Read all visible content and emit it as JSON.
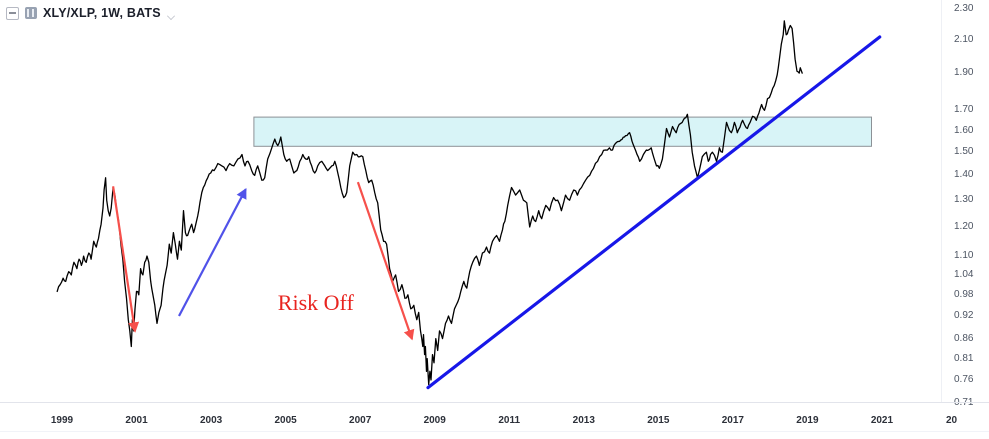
{
  "window": {
    "toolbar": {
      "title": "XLY/XLP, 1W, BATS"
    }
  },
  "chart_data": {
    "type": "line",
    "title": "XLY/XLP, 1W, BATS",
    "symbol": "XLY/XLP",
    "timeframe": "1W",
    "exchange": "BATS",
    "x_axis": {
      "tick_years": [
        1999,
        2001,
        2003,
        2005,
        2007,
        2009,
        2011,
        2013,
        2015,
        2017,
        2019,
        2021
      ],
      "edge_partial_label": "20"
    },
    "y_axis": {
      "side": "right",
      "scale": "log",
      "tick_values": [
        2.3,
        2.1,
        1.9,
        1.7,
        1.6,
        1.5,
        1.4,
        1.3,
        1.2,
        1.1,
        1.04,
        0.98,
        0.92,
        0.86,
        0.81,
        0.76,
        0.71
      ]
    },
    "series": [
      {
        "name": "XLY/XLP weekly close",
        "color": "#000000",
        "width": 1.3,
        "points": [
          [
            1998.87,
            0.99
          ],
          [
            1998.95,
            1.01
          ],
          [
            1999.03,
            1.03
          ],
          [
            1999.1,
            1.02
          ],
          [
            1999.18,
            1.05
          ],
          [
            1999.25,
            1.04
          ],
          [
            1999.32,
            1.08
          ],
          [
            1999.4,
            1.06
          ],
          [
            1999.46,
            1.09
          ],
          [
            1999.52,
            1.07
          ],
          [
            1999.58,
            1.1
          ],
          [
            1999.65,
            1.08
          ],
          [
            1999.72,
            1.11
          ],
          [
            1999.78,
            1.09
          ],
          [
            1999.85,
            1.15
          ],
          [
            1999.92,
            1.13
          ],
          [
            1999.98,
            1.16
          ],
          [
            2000.05,
            1.21
          ],
          [
            2000.1,
            1.27
          ],
          [
            2000.13,
            1.34
          ],
          [
            2000.17,
            1.39
          ],
          [
            2000.2,
            1.3
          ],
          [
            2000.24,
            1.26
          ],
          [
            2000.28,
            1.24
          ],
          [
            2000.32,
            1.27
          ],
          [
            2000.37,
            1.35
          ],
          [
            2000.42,
            1.32
          ],
          [
            2000.47,
            1.26
          ],
          [
            2000.52,
            1.22
          ],
          [
            2000.58,
            1.14
          ],
          [
            2000.63,
            1.09
          ],
          [
            2000.68,
            1.02
          ],
          [
            2000.73,
            0.97
          ],
          [
            2000.78,
            0.91
          ],
          [
            2000.82,
            0.88
          ],
          [
            2000.86,
            0.84
          ],
          [
            2000.89,
            0.91
          ],
          [
            2000.92,
            0.88
          ],
          [
            2000.96,
            0.94
          ],
          [
            2001.0,
            0.99
          ],
          [
            2001.06,
            0.98
          ],
          [
            2001.11,
            1.06
          ],
          [
            2001.17,
            1.04
          ],
          [
            2001.22,
            1.08
          ],
          [
            2001.28,
            1.1
          ],
          [
            2001.33,
            1.08
          ],
          [
            2001.38,
            1.02
          ],
          [
            2001.44,
            0.98
          ],
          [
            2001.49,
            0.95
          ],
          [
            2001.55,
            0.9
          ],
          [
            2001.6,
            0.93
          ],
          [
            2001.66,
            0.95
          ],
          [
            2001.71,
            1.0
          ],
          [
            2001.77,
            1.04
          ],
          [
            2001.82,
            1.07
          ],
          [
            2001.88,
            1.14
          ],
          [
            2001.93,
            1.11
          ],
          [
            2001.99,
            1.18
          ],
          [
            2002.04,
            1.14
          ],
          [
            2002.1,
            1.09
          ],
          [
            2002.15,
            1.15
          ],
          [
            2002.2,
            1.12
          ],
          [
            2002.26,
            1.26
          ],
          [
            2002.31,
            1.18
          ],
          [
            2002.37,
            1.17
          ],
          [
            2002.42,
            1.19
          ],
          [
            2002.48,
            1.21
          ],
          [
            2002.53,
            1.18
          ],
          [
            2002.59,
            1.21
          ],
          [
            2002.64,
            1.24
          ],
          [
            2002.7,
            1.29
          ],
          [
            2002.75,
            1.33
          ],
          [
            2002.83,
            1.36
          ],
          [
            2002.91,
            1.39
          ],
          [
            2002.99,
            1.41
          ],
          [
            2003.08,
            1.42
          ],
          [
            2003.18,
            1.45
          ],
          [
            2003.29,
            1.44
          ],
          [
            2003.4,
            1.42
          ],
          [
            2003.5,
            1.45
          ],
          [
            2003.61,
            1.44
          ],
          [
            2003.72,
            1.47
          ],
          [
            2003.83,
            1.49
          ],
          [
            2003.91,
            1.44
          ],
          [
            2003.99,
            1.46
          ],
          [
            2004.09,
            1.42
          ],
          [
            2004.17,
            1.4
          ],
          [
            2004.25,
            1.44
          ],
          [
            2004.36,
            1.38
          ],
          [
            2004.44,
            1.39
          ],
          [
            2004.52,
            1.47
          ],
          [
            2004.63,
            1.52
          ],
          [
            2004.71,
            1.56
          ],
          [
            2004.79,
            1.53
          ],
          [
            2004.87,
            1.57
          ],
          [
            2004.95,
            1.49
          ],
          [
            2005.03,
            1.46
          ],
          [
            2005.11,
            1.47
          ],
          [
            2005.22,
            1.41
          ],
          [
            2005.3,
            1.42
          ],
          [
            2005.38,
            1.46
          ],
          [
            2005.46,
            1.49
          ],
          [
            2005.54,
            1.47
          ],
          [
            2005.62,
            1.48
          ],
          [
            2005.7,
            1.44
          ],
          [
            2005.78,
            1.41
          ],
          [
            2005.86,
            1.44
          ],
          [
            2005.97,
            1.46
          ],
          [
            2006.05,
            1.44
          ],
          [
            2006.13,
            1.42
          ],
          [
            2006.24,
            1.44
          ],
          [
            2006.32,
            1.46
          ],
          [
            2006.4,
            1.41
          ],
          [
            2006.48,
            1.35
          ],
          [
            2006.56,
            1.31
          ],
          [
            2006.64,
            1.33
          ],
          [
            2006.72,
            1.44
          ],
          [
            2006.8,
            1.5
          ],
          [
            2006.91,
            1.49
          ],
          [
            2006.99,
            1.48
          ],
          [
            2007.07,
            1.48
          ],
          [
            2007.15,
            1.42
          ],
          [
            2007.23,
            1.37
          ],
          [
            2007.31,
            1.38
          ],
          [
            2007.39,
            1.33
          ],
          [
            2007.47,
            1.29
          ],
          [
            2007.55,
            1.19
          ],
          [
            2007.63,
            1.15
          ],
          [
            2007.71,
            1.14
          ],
          [
            2007.79,
            1.06
          ],
          [
            2007.87,
            1.02
          ],
          [
            2007.95,
            1.04
          ],
          [
            2008.03,
            0.99
          ],
          [
            2008.12,
            1.01
          ],
          [
            2008.2,
            0.97
          ],
          [
            2008.28,
            0.98
          ],
          [
            2008.36,
            0.94
          ],
          [
            2008.44,
            0.95
          ],
          [
            2008.52,
            0.91
          ],
          [
            2008.57,
            0.93
          ],
          [
            2008.62,
            0.88
          ],
          [
            2008.68,
            0.84
          ],
          [
            2008.7,
            0.87
          ],
          [
            2008.73,
            0.82
          ],
          [
            2008.75,
            0.84
          ],
          [
            2008.78,
            0.78
          ],
          [
            2008.8,
            0.81
          ],
          [
            2008.84,
            0.75
          ],
          [
            2008.87,
            0.78
          ],
          [
            2008.9,
            0.76
          ],
          [
            2008.94,
            0.82
          ],
          [
            2008.98,
            0.8
          ],
          [
            2009.03,
            0.86
          ],
          [
            2009.08,
            0.83
          ],
          [
            2009.13,
            0.88
          ],
          [
            2009.21,
            0.86
          ],
          [
            2009.29,
            0.9
          ],
          [
            2009.37,
            0.92
          ],
          [
            2009.45,
            0.9
          ],
          [
            2009.53,
            0.94
          ],
          [
            2009.62,
            0.96
          ],
          [
            2009.7,
            0.99
          ],
          [
            2009.78,
            1.02
          ],
          [
            2009.86,
            1.0
          ],
          [
            2009.94,
            1.05
          ],
          [
            2010.02,
            1.08
          ],
          [
            2010.12,
            1.1
          ],
          [
            2010.2,
            1.07
          ],
          [
            2010.28,
            1.11
          ],
          [
            2010.39,
            1.13
          ],
          [
            2010.47,
            1.11
          ],
          [
            2010.55,
            1.15
          ],
          [
            2010.66,
            1.17
          ],
          [
            2010.74,
            1.15
          ],
          [
            2010.82,
            1.19
          ],
          [
            2010.88,
            1.22
          ],
          [
            2010.96,
            1.28
          ],
          [
            2011.06,
            1.35
          ],
          [
            2011.17,
            1.32
          ],
          [
            2011.28,
            1.34
          ],
          [
            2011.38,
            1.3
          ],
          [
            2011.47,
            1.29
          ],
          [
            2011.55,
            1.2
          ],
          [
            2011.63,
            1.24
          ],
          [
            2011.71,
            1.22
          ],
          [
            2011.79,
            1.26
          ],
          [
            2011.87,
            1.23
          ],
          [
            2011.98,
            1.28
          ],
          [
            2012.08,
            1.26
          ],
          [
            2012.19,
            1.31
          ],
          [
            2012.3,
            1.3
          ],
          [
            2012.4,
            1.26
          ],
          [
            2012.51,
            1.32
          ],
          [
            2012.62,
            1.3
          ],
          [
            2012.73,
            1.34
          ],
          [
            2012.83,
            1.32
          ],
          [
            2012.94,
            1.35
          ],
          [
            2013.05,
            1.38
          ],
          [
            2013.16,
            1.4
          ],
          [
            2013.26,
            1.43
          ],
          [
            2013.37,
            1.46
          ],
          [
            2013.48,
            1.49
          ],
          [
            2013.58,
            1.51
          ],
          [
            2013.69,
            1.52
          ],
          [
            2013.77,
            1.51
          ],
          [
            2013.85,
            1.54
          ],
          [
            2013.96,
            1.55
          ],
          [
            2014.09,
            1.57
          ],
          [
            2014.23,
            1.59
          ],
          [
            2014.36,
            1.52
          ],
          [
            2014.5,
            1.46
          ],
          [
            2014.6,
            1.49
          ],
          [
            2014.68,
            1.51
          ],
          [
            2014.81,
            1.52
          ],
          [
            2014.95,
            1.44
          ],
          [
            2015.03,
            1.43
          ],
          [
            2015.11,
            1.47
          ],
          [
            2015.22,
            1.61
          ],
          [
            2015.3,
            1.57
          ],
          [
            2015.38,
            1.62
          ],
          [
            2015.48,
            1.59
          ],
          [
            2015.56,
            1.63
          ],
          [
            2015.64,
            1.64
          ],
          [
            2015.7,
            1.66
          ],
          [
            2015.78,
            1.68
          ],
          [
            2015.86,
            1.58
          ],
          [
            2015.91,
            1.5
          ],
          [
            2015.97,
            1.44
          ],
          [
            2016.05,
            1.39
          ],
          [
            2016.1,
            1.42
          ],
          [
            2016.18,
            1.48
          ],
          [
            2016.29,
            1.5
          ],
          [
            2016.34,
            1.46
          ],
          [
            2016.4,
            1.49
          ],
          [
            2016.45,
            1.5
          ],
          [
            2016.56,
            1.46
          ],
          [
            2016.64,
            1.52
          ],
          [
            2016.72,
            1.5
          ],
          [
            2016.83,
            1.64
          ],
          [
            2016.91,
            1.6
          ],
          [
            2016.96,
            1.59
          ],
          [
            2017.04,
            1.64
          ],
          [
            2017.12,
            1.59
          ],
          [
            2017.26,
            1.65
          ],
          [
            2017.39,
            1.61
          ],
          [
            2017.53,
            1.67
          ],
          [
            2017.63,
            1.65
          ],
          [
            2017.77,
            1.73
          ],
          [
            2017.85,
            1.7
          ],
          [
            2017.93,
            1.76
          ],
          [
            2018.03,
            1.79
          ],
          [
            2018.11,
            1.83
          ],
          [
            2018.19,
            1.89
          ],
          [
            2018.25,
            1.98
          ],
          [
            2018.3,
            2.07
          ],
          [
            2018.35,
            2.13
          ],
          [
            2018.38,
            2.22
          ],
          [
            2018.43,
            2.13
          ],
          [
            2018.49,
            2.16
          ],
          [
            2018.54,
            2.19
          ],
          [
            2018.59,
            2.17
          ],
          [
            2018.63,
            2.08
          ],
          [
            2018.67,
            1.98
          ],
          [
            2018.72,
            1.91
          ],
          [
            2018.78,
            1.9
          ],
          [
            2018.81,
            1.93
          ],
          [
            2018.86,
            1.9
          ]
        ]
      }
    ],
    "trendline": {
      "name": "rising support trendline",
      "color": "#1717e8",
      "width": 3.2,
      "from_year": 2008.82,
      "from_price": 0.743,
      "to_year": 2020.94,
      "to_price": 2.116
    },
    "resistance_zone": {
      "name": "horizontal resistance zone",
      "fill": "#d8f4f7",
      "border": "#8c9196",
      "from_year": 2004.15,
      "to_year": 2020.72,
      "price_low": 1.527,
      "price_high": 1.666
    },
    "annotations": {
      "risk_off_label": {
        "text": "Risk Off",
        "color": "#e8241f",
        "x_year": 2005.81,
        "price": 0.956
      },
      "arrows": [
        {
          "id": "risk-off-arrow-2000",
          "color": "#f6504b",
          "width": 2.2,
          "from": [
            2000.37,
            1.355
          ],
          "to": [
            2000.96,
            0.879
          ]
        },
        {
          "id": "recovery-arrow-2002",
          "color": "#5052e9",
          "width": 2.2,
          "from": [
            2002.14,
            0.92
          ],
          "to": [
            2003.93,
            1.343
          ]
        },
        {
          "id": "risk-off-arrow-2008",
          "color": "#f6504b",
          "width": 2.2,
          "from": [
            2006.94,
            1.372
          ],
          "to": [
            2008.39,
            0.859
          ]
        }
      ]
    }
  }
}
